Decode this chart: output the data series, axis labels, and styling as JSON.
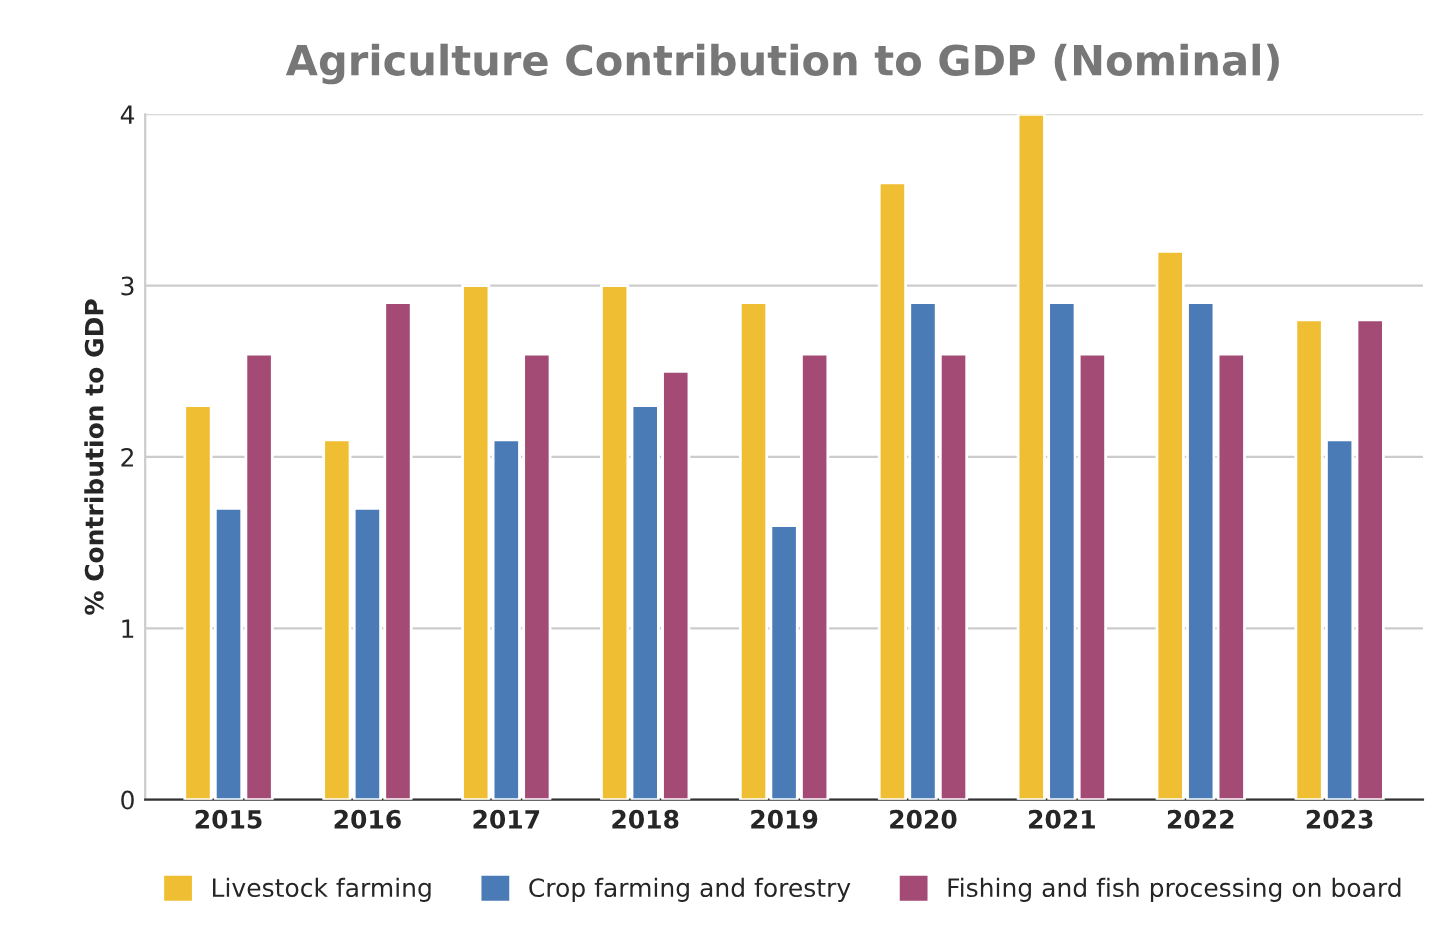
{
  "chart_data": {
    "type": "bar",
    "title": "Agriculture Contribution to GDP (Nominal)",
    "ylabel": "% Contribution to GDP",
    "categories": [
      "2015",
      "2016",
      "2017",
      "2018",
      "2019",
      "2020",
      "2021",
      "2022",
      "2023"
    ],
    "series": [
      {
        "name": "Livestock farming",
        "color": "#f0be32",
        "values": [
          2.3,
          2.1,
          3.0,
          3.0,
          2.9,
          3.6,
          4.0,
          3.2,
          2.8
        ]
      },
      {
        "name": "Crop farming and forestry",
        "color": "#4a7bb7",
        "values": [
          1.7,
          1.7,
          2.1,
          2.3,
          1.6,
          2.9,
          2.9,
          2.9,
          2.1
        ]
      },
      {
        "name": "Fishing and fish processing on board",
        "color": "#a34a75",
        "values": [
          2.6,
          2.9,
          2.6,
          2.5,
          2.6,
          2.6,
          2.6,
          2.6,
          2.8
        ]
      }
    ],
    "ylim": [
      0,
      4
    ],
    "yticks": [
      0,
      1,
      2,
      3,
      4
    ],
    "grid": "y",
    "legend": "bottom"
  }
}
